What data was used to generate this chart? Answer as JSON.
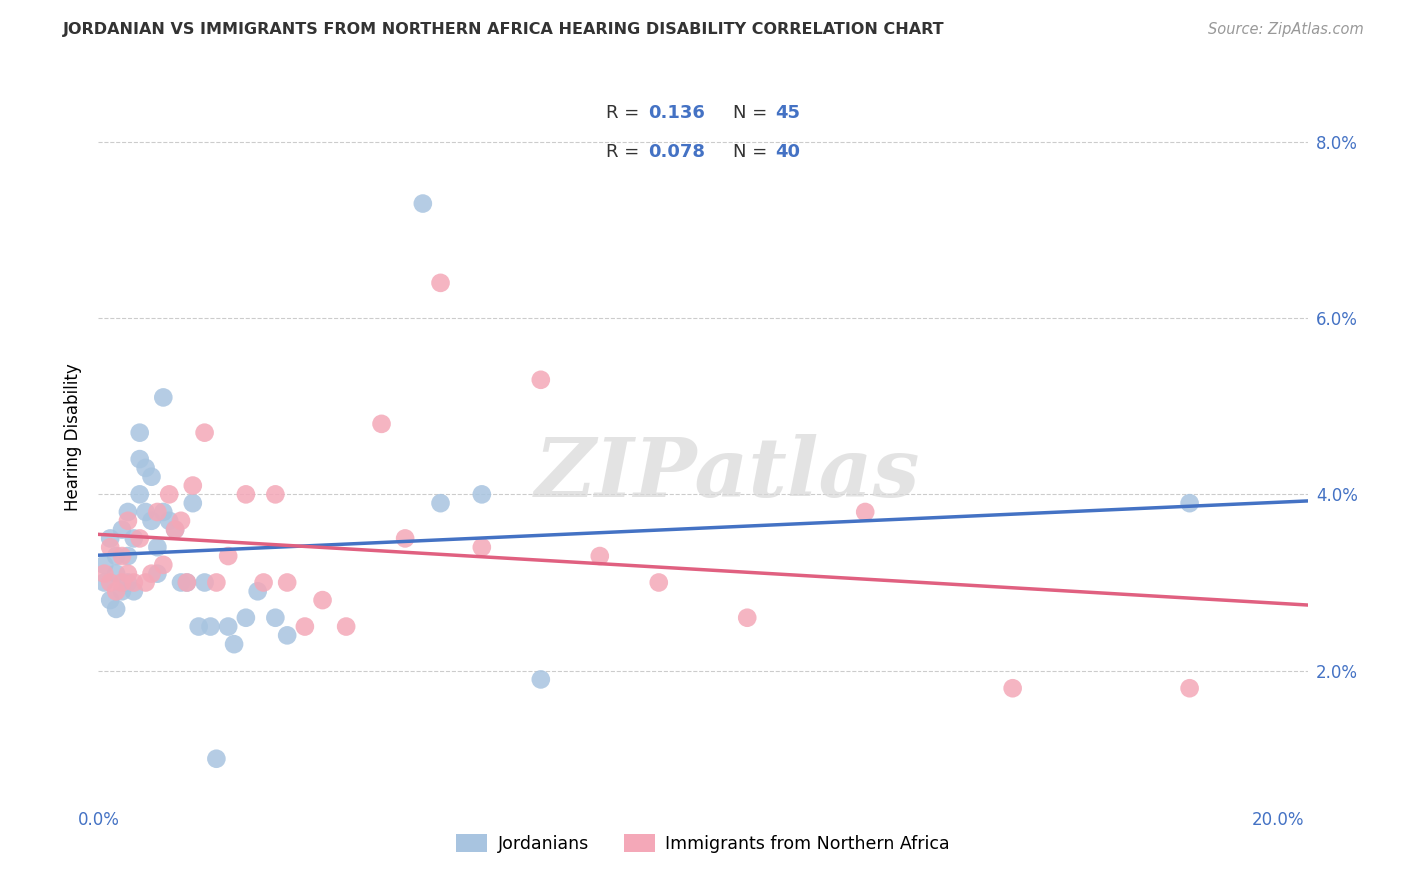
{
  "title": "JORDANIAN VS IMMIGRANTS FROM NORTHERN AFRICA HEARING DISABILITY CORRELATION CHART",
  "source": "Source: ZipAtlas.com",
  "ylabel": "Hearing Disability",
  "watermark": "ZIPatlas",
  "blue_R": 0.136,
  "blue_N": 45,
  "pink_R": 0.078,
  "pink_N": 40,
  "blue_color": "#a8c4e0",
  "pink_color": "#f4a8b8",
  "blue_line_color": "#4472c4",
  "pink_line_color": "#e06080",
  "xlim": [
    0.0,
    0.205
  ],
  "ylim": [
    0.005,
    0.088
  ],
  "blue_x": [
    0.001,
    0.001,
    0.002,
    0.002,
    0.003,
    0.003,
    0.003,
    0.004,
    0.004,
    0.005,
    0.005,
    0.005,
    0.006,
    0.006,
    0.007,
    0.007,
    0.007,
    0.008,
    0.008,
    0.009,
    0.009,
    0.01,
    0.01,
    0.011,
    0.011,
    0.012,
    0.013,
    0.014,
    0.015,
    0.016,
    0.017,
    0.018,
    0.019,
    0.02,
    0.022,
    0.023,
    0.025,
    0.027,
    0.03,
    0.032,
    0.055,
    0.058,
    0.065,
    0.075,
    0.185
  ],
  "blue_y": [
    0.032,
    0.03,
    0.035,
    0.028,
    0.033,
    0.031,
    0.027,
    0.036,
    0.029,
    0.038,
    0.033,
    0.03,
    0.035,
    0.029,
    0.047,
    0.044,
    0.04,
    0.043,
    0.038,
    0.042,
    0.037,
    0.034,
    0.031,
    0.051,
    0.038,
    0.037,
    0.036,
    0.03,
    0.03,
    0.039,
    0.025,
    0.03,
    0.025,
    0.01,
    0.025,
    0.023,
    0.026,
    0.029,
    0.026,
    0.024,
    0.073,
    0.039,
    0.04,
    0.019,
    0.039
  ],
  "pink_x": [
    0.001,
    0.002,
    0.002,
    0.003,
    0.004,
    0.004,
    0.005,
    0.005,
    0.006,
    0.007,
    0.008,
    0.009,
    0.01,
    0.011,
    0.012,
    0.013,
    0.014,
    0.015,
    0.016,
    0.018,
    0.02,
    0.022,
    0.025,
    0.028,
    0.03,
    0.032,
    0.035,
    0.038,
    0.042,
    0.048,
    0.052,
    0.058,
    0.065,
    0.075,
    0.085,
    0.095,
    0.11,
    0.13,
    0.155,
    0.185
  ],
  "pink_y": [
    0.031,
    0.034,
    0.03,
    0.029,
    0.033,
    0.03,
    0.037,
    0.031,
    0.03,
    0.035,
    0.03,
    0.031,
    0.038,
    0.032,
    0.04,
    0.036,
    0.037,
    0.03,
    0.041,
    0.047,
    0.03,
    0.033,
    0.04,
    0.03,
    0.04,
    0.03,
    0.025,
    0.028,
    0.025,
    0.048,
    0.035,
    0.064,
    0.034,
    0.053,
    0.033,
    0.03,
    0.026,
    0.038,
    0.018,
    0.018
  ]
}
